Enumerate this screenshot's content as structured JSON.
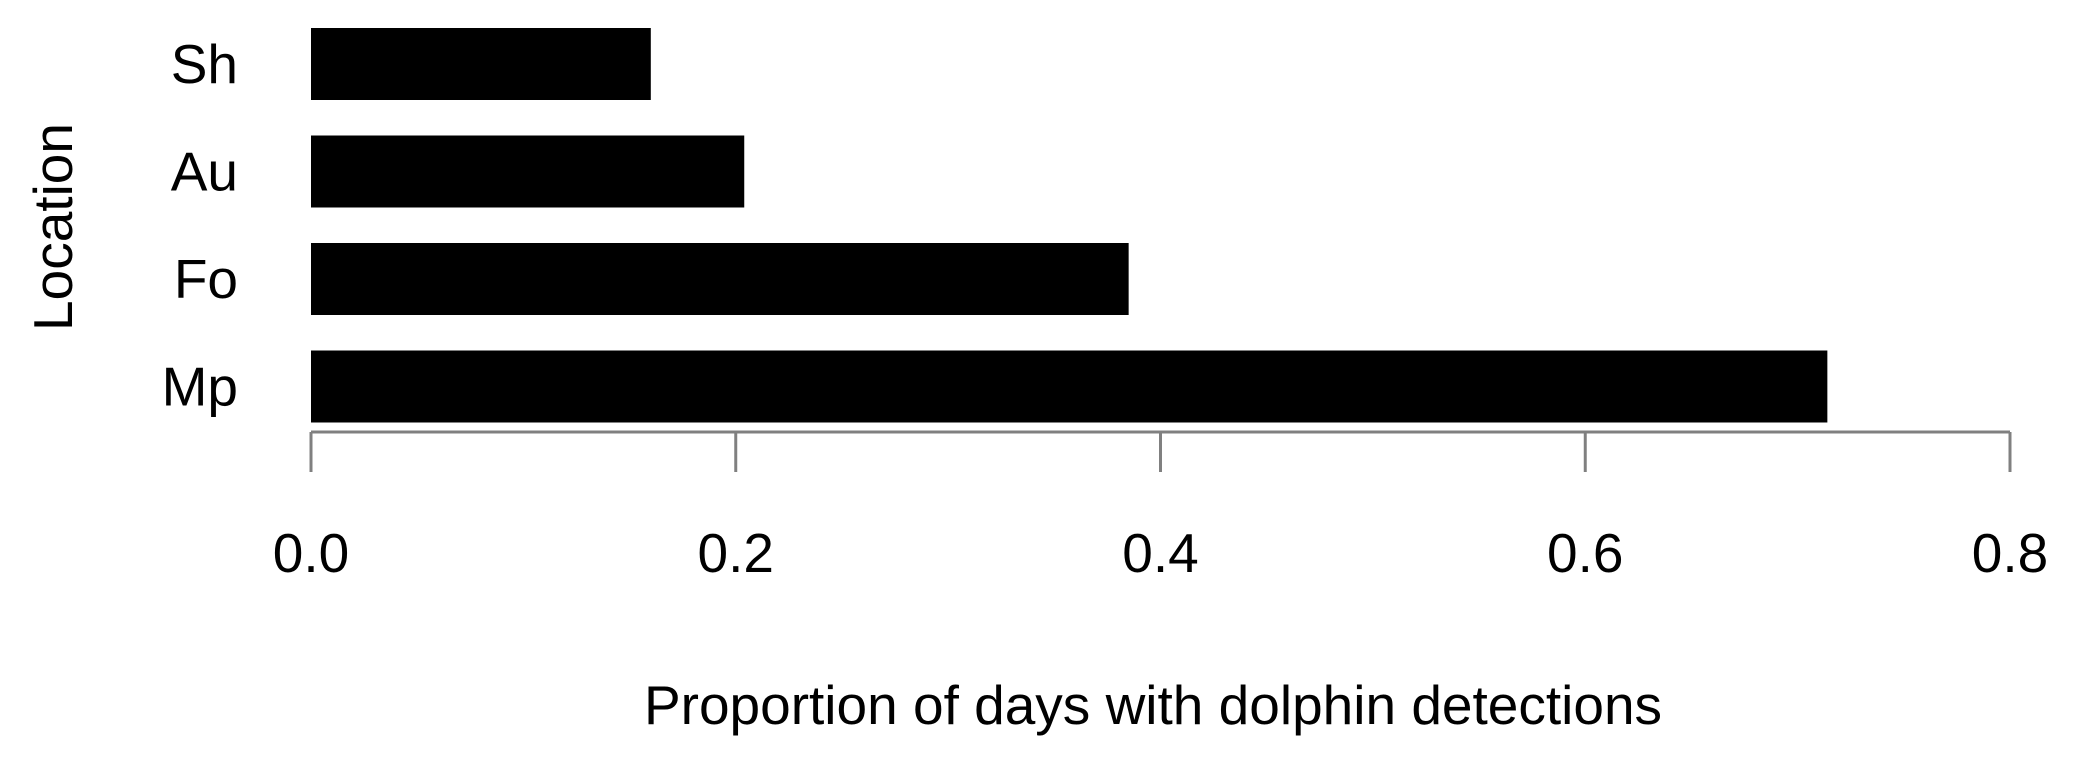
{
  "chart_data": {
    "type": "bar",
    "orientation": "horizontal",
    "categories": [
      "Sh",
      "Au",
      "Fo",
      "Mp"
    ],
    "values": [
      0.16,
      0.204,
      0.385,
      0.714
    ],
    "title": "",
    "xlabel": "Proportion of days with dolphin detections",
    "ylabel": "Location",
    "xlim": [
      0,
      0.8
    ],
    "xticks": [
      "0.0",
      "0.2",
      "0.4",
      "0.6",
      "0.8"
    ],
    "grid": false,
    "bar_color": "#000000",
    "axis_color": "#808080"
  }
}
